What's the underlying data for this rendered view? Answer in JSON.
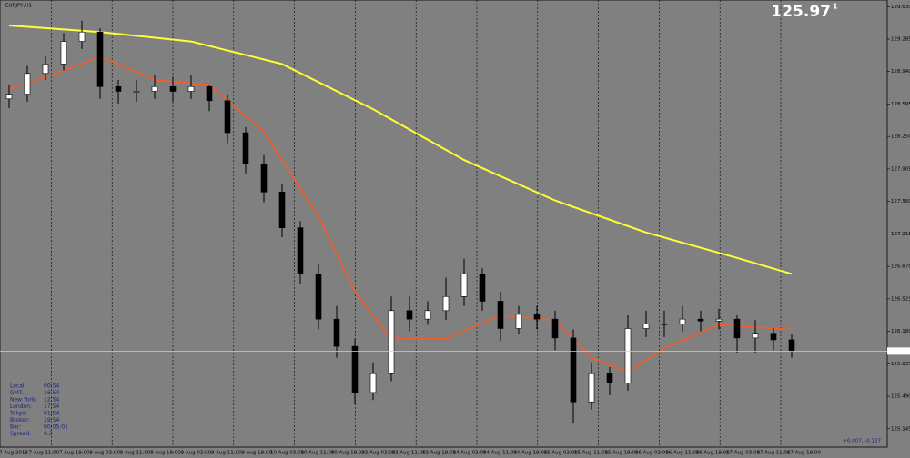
{
  "chart_data": {
    "type": "candlestick",
    "title": "EURJPY,H1",
    "bid": {
      "label": "125.97",
      "superscript": "1"
    },
    "ylim": [
      124.95,
      129.7
    ],
    "yticks": [
      {
        "value": 129.63,
        "label": "129.630"
      },
      {
        "value": 129.285,
        "label": "129.285"
      },
      {
        "value": 128.94,
        "label": "128.940"
      },
      {
        "value": 128.595,
        "label": "128.595"
      },
      {
        "value": 128.25,
        "label": "128.250"
      },
      {
        "value": 127.905,
        "label": "127.905"
      },
      {
        "value": 127.56,
        "label": "127.560"
      },
      {
        "value": 127.215,
        "label": "127.215"
      },
      {
        "value": 126.87,
        "label": "126.870"
      },
      {
        "value": 126.525,
        "label": "126.525"
      },
      {
        "value": 126.18,
        "label": "126.180"
      },
      {
        "value": 125.835,
        "label": "125.835"
      },
      {
        "value": 125.49,
        "label": "125.490"
      },
      {
        "value": 125.145,
        "label": "125.145"
      }
    ],
    "x_labels": [
      "7 Aug 2018",
      "7 Aug 11:00",
      "7 Aug 19:00",
      "8 Aug 03:00",
      "8 Aug 11:00",
      "8 Aug 19:00",
      "9 Aug 03:00",
      "9 Aug 11:00",
      "9 Aug 19:00",
      "10 Aug 03:00",
      "10 Aug 11:00",
      "10 Aug 19:00",
      "13 Aug 03:00",
      "13 Aug 11:00",
      "13 Aug 19:00",
      "14 Aug 03:00",
      "14 Aug 11:00",
      "14 Aug 19:00",
      "15 Aug 03:00",
      "15 Aug 11:00",
      "15 Aug 19:00",
      "16 Aug 03:00",
      "16 Aug 11:00",
      "16 Aug 19:00",
      "17 Aug 03:00",
      "17 Aug 11:00",
      "17 Aug 19:00"
    ],
    "open": [
      128.65,
      128.7,
      128.92,
      129.02,
      129.26,
      129.36,
      128.78,
      128.73,
      128.73,
      128.78,
      128.73,
      128.78,
      128.63,
      128.29,
      127.96,
      127.66,
      127.28,
      126.79,
      126.31,
      126.02,
      125.53,
      125.73,
      126.4,
      126.31,
      126.4,
      126.55,
      126.79,
      126.5,
      126.21,
      126.36,
      126.31,
      126.11,
      125.43,
      125.73,
      125.63,
      126.21,
      126.26,
      126.26,
      126.31,
      126.29,
      126.31,
      126.11,
      126.16,
      126.09
    ],
    "high": [
      128.8,
      129.0,
      129.1,
      129.35,
      129.48,
      129.4,
      128.85,
      128.85,
      128.9,
      128.88,
      128.9,
      128.8,
      128.7,
      128.35,
      128.05,
      127.75,
      127.35,
      126.9,
      126.45,
      126.1,
      125.85,
      126.55,
      126.55,
      126.5,
      126.75,
      126.95,
      126.85,
      126.6,
      126.45,
      126.45,
      126.4,
      126.2,
      125.85,
      125.8,
      126.35,
      126.4,
      126.4,
      126.45,
      126.4,
      126.42,
      126.35,
      126.3,
      126.22,
      126.15
    ],
    "low": [
      128.55,
      128.62,
      128.85,
      128.95,
      129.18,
      128.65,
      128.6,
      128.62,
      128.65,
      128.62,
      128.65,
      128.52,
      128.18,
      127.85,
      127.55,
      127.18,
      126.68,
      126.2,
      125.9,
      125.4,
      125.45,
      125.65,
      126.18,
      126.25,
      126.3,
      126.45,
      126.4,
      126.08,
      126.15,
      126.2,
      125.98,
      125.2,
      125.35,
      125.5,
      125.55,
      126.12,
      126.12,
      126.18,
      126.18,
      126.2,
      125.95,
      125.95,
      125.98,
      125.9
    ],
    "close": [
      128.7,
      128.92,
      129.02,
      129.26,
      129.36,
      128.78,
      128.73,
      128.73,
      128.78,
      128.73,
      128.78,
      128.63,
      128.29,
      127.96,
      127.66,
      127.28,
      126.79,
      126.31,
      126.02,
      125.53,
      125.73,
      126.4,
      126.31,
      126.4,
      126.55,
      126.79,
      126.5,
      126.21,
      126.36,
      126.31,
      126.11,
      125.43,
      125.73,
      125.63,
      126.21,
      126.26,
      126.26,
      126.31,
      126.29,
      126.31,
      126.11,
      126.16,
      126.09,
      125.97
    ],
    "lines": [
      {
        "color": "#ffff33",
        "x": [
          0,
          5,
          10,
          15,
          20,
          25,
          30,
          35,
          40,
          43
        ],
        "values": [
          129.43,
          129.36,
          129.26,
          129.02,
          128.54,
          128.0,
          127.57,
          127.23,
          126.96,
          126.79
        ]
      },
      {
        "color": "#ff5a1f",
        "x": [
          0,
          3,
          5,
          8,
          11,
          14,
          17,
          19,
          21,
          24,
          27,
          30,
          32,
          34,
          36,
          39,
          43
        ],
        "values": [
          128.75,
          128.95,
          129.1,
          128.85,
          128.8,
          128.3,
          127.4,
          126.6,
          126.1,
          126.1,
          126.35,
          126.3,
          125.9,
          125.75,
          126.0,
          126.25,
          126.2
        ]
      }
    ],
    "info": [
      [
        "Local:",
        "00:54"
      ],
      [
        "GMT:",
        "16:54"
      ],
      [
        "New York:",
        "12:54"
      ],
      [
        "London:",
        "17:54"
      ],
      [
        "Tokyo:",
        "01:54"
      ],
      [
        "Broker:",
        "19:54"
      ],
      [
        "Bar:",
        "00:05:01"
      ],
      [
        "Spread:",
        "0.3"
      ]
    ],
    "footer_note": "+0.007, -0.127"
  }
}
